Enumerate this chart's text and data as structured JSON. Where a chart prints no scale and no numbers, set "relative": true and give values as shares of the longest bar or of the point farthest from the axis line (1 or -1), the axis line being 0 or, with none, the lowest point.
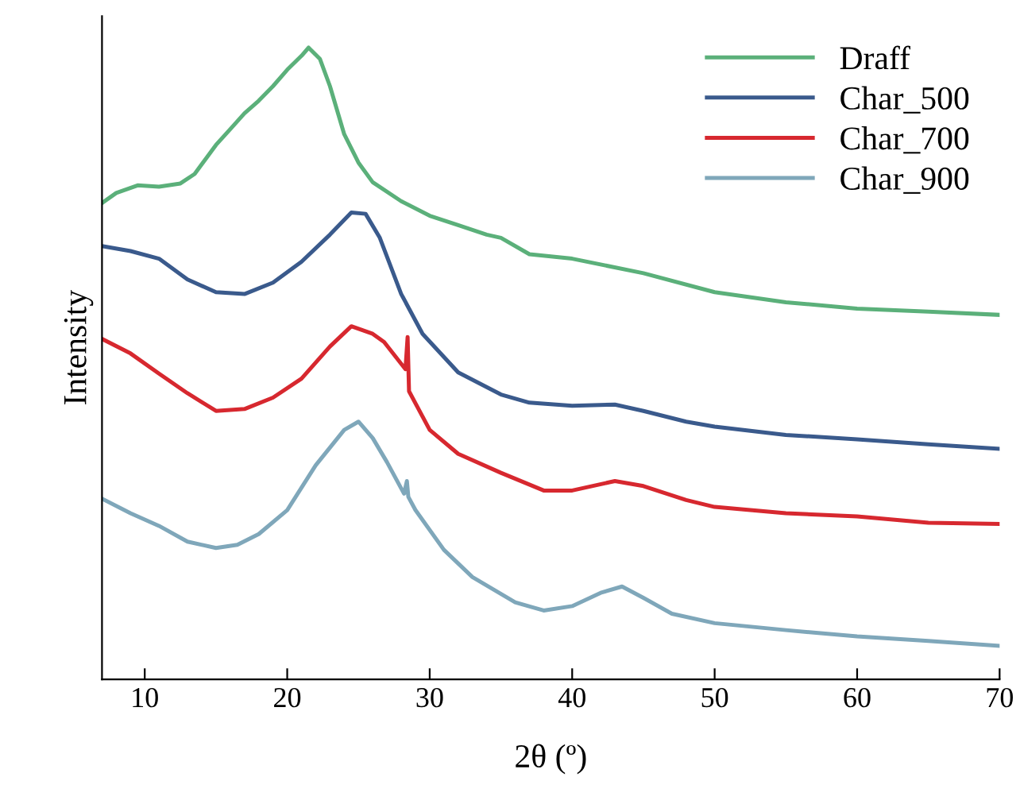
{
  "chart_data": {
    "type": "line",
    "relative": true,
    "xlabel": "2θ (º)",
    "ylabel": "Intensity",
    "xlim": [
      7,
      70
    ],
    "xticks": [
      10,
      20,
      30,
      40,
      50,
      60,
      70
    ],
    "legend": "top right",
    "grid": false,
    "marker": "none",
    "line_style": "solid",
    "tick_labels": "x",
    "series": [
      {
        "name": "Draff",
        "color": "#5bb07a",
        "x": [
          7,
          8,
          9.5,
          11,
          12.5,
          13.5,
          15,
          16,
          17,
          18,
          19,
          20,
          21,
          21.5,
          22.3,
          23,
          24,
          25,
          26,
          28,
          30,
          32,
          34,
          35,
          37,
          40,
          45,
          50,
          55,
          60,
          65,
          70
        ],
        "values": [
          0.754,
          0.77,
          0.782,
          0.78,
          0.785,
          0.8,
          0.846,
          0.871,
          0.896,
          0.916,
          0.939,
          0.965,
          0.987,
          1.0,
          0.982,
          0.939,
          0.863,
          0.818,
          0.787,
          0.757,
          0.734,
          0.719,
          0.704,
          0.699,
          0.673,
          0.666,
          0.643,
          0.613,
          0.597,
          0.587,
          0.582,
          0.577
        ]
      },
      {
        "name": "Char_500",
        "color": "#3a5a8c",
        "x": [
          7,
          9,
          11,
          13,
          15,
          17,
          19,
          21,
          23,
          24.5,
          25.5,
          26.5,
          28,
          29.5,
          32,
          35,
          37,
          40,
          43,
          45,
          48,
          50,
          55,
          60,
          65,
          70
        ],
        "values": [
          0.686,
          0.678,
          0.666,
          0.633,
          0.613,
          0.61,
          0.628,
          0.661,
          0.704,
          0.739,
          0.737,
          0.699,
          0.61,
          0.547,
          0.486,
          0.451,
          0.438,
          0.433,
          0.435,
          0.425,
          0.408,
          0.4,
          0.387,
          0.38,
          0.372,
          0.365
        ]
      },
      {
        "name": "Char_700",
        "color": "#d7282f",
        "x": [
          7,
          9,
          11,
          13,
          15,
          17,
          19,
          21,
          23,
          24.5,
          26,
          26.8,
          28.3,
          28.45,
          28.55,
          30,
          32,
          35,
          38,
          40,
          43,
          45,
          48,
          50,
          55,
          60,
          65,
          70
        ],
        "values": [
          0.539,
          0.516,
          0.484,
          0.453,
          0.425,
          0.428,
          0.446,
          0.476,
          0.527,
          0.559,
          0.547,
          0.534,
          0.491,
          0.542,
          0.456,
          0.395,
          0.357,
          0.327,
          0.299,
          0.299,
          0.314,
          0.306,
          0.284,
          0.273,
          0.263,
          0.258,
          0.248,
          0.246
        ]
      },
      {
        "name": "Char_900",
        "color": "#7fa7ba",
        "x": [
          7,
          9,
          11,
          13,
          15,
          16.5,
          18,
          20,
          22,
          24,
          25,
          26,
          27,
          28.2,
          28.4,
          28.5,
          29,
          31,
          33,
          36,
          38,
          40,
          42,
          43.5,
          45,
          47,
          50,
          55,
          60,
          65,
          70
        ],
        "values": [
          0.286,
          0.263,
          0.243,
          0.218,
          0.208,
          0.213,
          0.23,
          0.268,
          0.339,
          0.395,
          0.408,
          0.382,
          0.344,
          0.294,
          0.314,
          0.289,
          0.268,
          0.205,
          0.162,
          0.122,
          0.109,
          0.116,
          0.137,
          0.147,
          0.129,
          0.104,
          0.089,
          0.078,
          0.068,
          0.061,
          0.053
        ]
      }
    ]
  }
}
